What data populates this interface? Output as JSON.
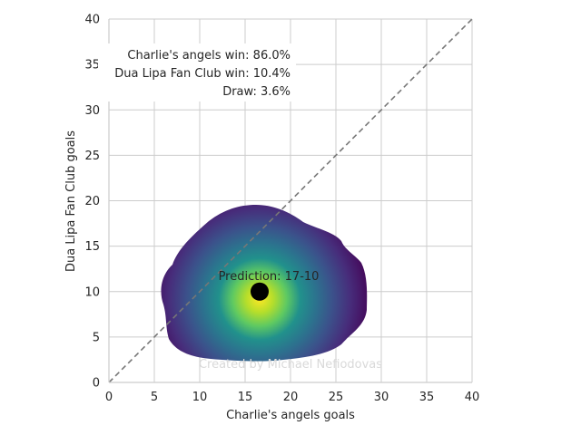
{
  "chart_data": {
    "type": "scatter",
    "xlabel": "Charlie's angels goals",
    "ylabel": "Dua Lipa Fan Club goals",
    "xlim": [
      0,
      40
    ],
    "ylim": [
      0,
      40
    ],
    "xticks": [
      0,
      5,
      10,
      15,
      20,
      25,
      30,
      35,
      40
    ],
    "yticks": [
      0,
      5,
      10,
      15,
      20,
      25,
      30,
      35,
      40
    ],
    "grid": true,
    "reference_line": {
      "from": [
        0,
        0
      ],
      "to": [
        40,
        40
      ],
      "style": "dashed",
      "color": "#777777"
    },
    "density": {
      "colormap": "viridis",
      "center": [
        16.5,
        9.5
      ],
      "x_range": [
        5.8,
        28.5
      ],
      "y_range": [
        2.0,
        19.3
      ]
    },
    "point": {
      "x": 16.6,
      "y": 10.0,
      "color": "#000000"
    },
    "annotations": {
      "home_win": "Charlie's angels win: 86.0%",
      "away_win": "Dua Lipa Fan Club win: 10.4%",
      "draw": "Draw: 3.6%",
      "prediction": "Prediction: 17-10",
      "watermark": "Created by Michael Nefiodovas"
    }
  }
}
